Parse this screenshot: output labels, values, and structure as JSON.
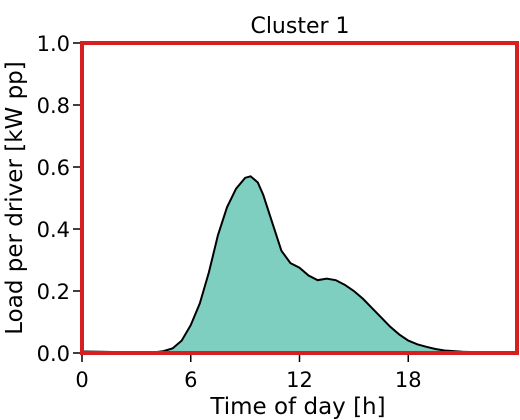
{
  "chart_data": {
    "type": "area",
    "title": "Cluster 1",
    "xlabel": "Time of day [h]",
    "ylabel": "Load per driver [kW pp]",
    "xlim": [
      0,
      24
    ],
    "ylim": [
      0.0,
      1.0
    ],
    "xticks": [
      0,
      6,
      12,
      18
    ],
    "yticks": [
      0.0,
      0.2,
      0.4,
      0.6,
      0.8,
      1.0
    ],
    "xtick_labels": [
      "0",
      "6",
      "12",
      "18"
    ],
    "ytick_labels": [
      "0.0",
      "0.2",
      "0.4",
      "0.6",
      "0.8",
      "1.0"
    ],
    "grid": false,
    "fill_color": "#7ecfc0",
    "line_color": "#000000",
    "frame_color": "#d62020",
    "baseline_color": "#e0a030",
    "x": [
      0,
      1,
      2,
      3,
      4,
      4.5,
      5,
      5.5,
      6,
      6.5,
      7,
      7.5,
      8,
      8.5,
      9,
      9.3,
      9.7,
      10,
      10.5,
      11,
      11.5,
      12,
      12.5,
      13,
      13.5,
      14,
      14.5,
      15,
      15.5,
      16,
      16.5,
      17,
      17.5,
      18,
      18.5,
      19,
      19.5,
      20,
      21,
      22,
      23,
      24
    ],
    "y": [
      0.005,
      0.004,
      0.003,
      0.002,
      0.002,
      0.006,
      0.015,
      0.04,
      0.09,
      0.16,
      0.26,
      0.38,
      0.47,
      0.53,
      0.565,
      0.57,
      0.55,
      0.51,
      0.42,
      0.33,
      0.29,
      0.275,
      0.25,
      0.235,
      0.24,
      0.235,
      0.22,
      0.2,
      0.175,
      0.145,
      0.115,
      0.085,
      0.06,
      0.04,
      0.028,
      0.02,
      0.013,
      0.008,
      0.004,
      0.002,
      0.001,
      0.0
    ]
  }
}
